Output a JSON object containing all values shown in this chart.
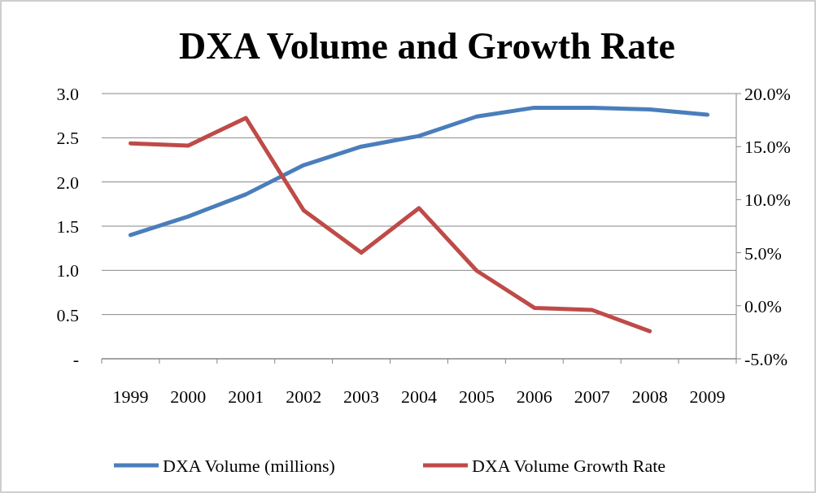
{
  "chart_data": {
    "type": "line",
    "title": "DXA Volume and Growth Rate",
    "categories": [
      "1999",
      "2000",
      "2001",
      "2002",
      "2003",
      "2004",
      "2005",
      "2006",
      "2007",
      "2008",
      "2009"
    ],
    "series": [
      {
        "name": "DXA Volume (millions)",
        "color": "#4a7ebb",
        "values": [
          1.4,
          1.61,
          1.86,
          2.19,
          2.4,
          2.52,
          2.74,
          2.84,
          2.84,
          2.82,
          2.76
        ]
      },
      {
        "name": "DXA Volume Growth Rate",
        "color": "#be4b48",
        "axis": "y2",
        "values": [
          15.3,
          15.1,
          17.7,
          9.0,
          5.0,
          9.2,
          3.3,
          -0.2,
          -0.4,
          -2.4,
          null
        ]
      }
    ],
    "ylim": [
      0,
      3
    ],
    "yticks": [
      {
        "value": 0,
        "label": "-"
      },
      {
        "value": 0.5,
        "label": "0.5"
      },
      {
        "value": 1,
        "label": "1.0"
      },
      {
        "value": 1.5,
        "label": "1.5"
      },
      {
        "value": 2,
        "label": "2.0"
      },
      {
        "value": 2.5,
        "label": "2.5"
      },
      {
        "value": 3,
        "label": "3.0"
      }
    ],
    "y2lim": [
      -5,
      20
    ],
    "y2ticks": [
      {
        "value": -5,
        "label": "-5.0%"
      },
      {
        "value": 0,
        "label": "0.0%"
      },
      {
        "value": 5,
        "label": "5.0%"
      },
      {
        "value": 10,
        "label": "10.0%"
      },
      {
        "value": 15,
        "label": "15.0%"
      },
      {
        "value": 20,
        "label": "20.0%"
      }
    ],
    "grid": "y",
    "legend": "bottom",
    "marker": "none",
    "line_style": "solid"
  }
}
